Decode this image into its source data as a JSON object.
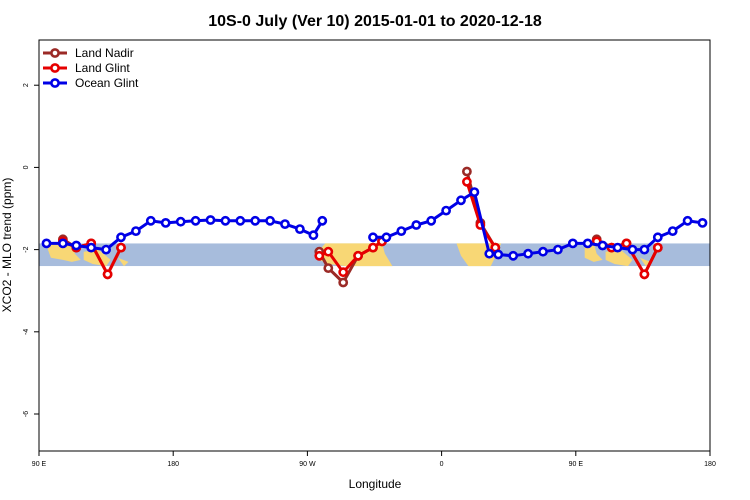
{
  "chart_data": {
    "type": "line",
    "title": "10S-0 July (Ver 10)   2015-01-01 to 2020-12-18",
    "xlabel": "Longitude",
    "ylabel": "XCO2 - MLO trend (ppm)",
    "xlim": [
      90,
      540
    ],
    "ylim": [
      -6.9,
      3.1
    ],
    "x_ticks": [
      {
        "value": 90,
        "label": "90 E"
      },
      {
        "value": 180,
        "label": "180"
      },
      {
        "value": 270,
        "label": "90 W"
      },
      {
        "value": 360,
        "label": "0"
      },
      {
        "value": 450,
        "label": "90 E"
      },
      {
        "value": 540,
        "label": "180"
      }
    ],
    "y_ticks": [
      {
        "value": 2,
        "label": "2"
      },
      {
        "value": 0,
        "label": "0"
      },
      {
        "value": -2,
        "label": "-2"
      },
      {
        "value": -4,
        "label": "-4"
      },
      {
        "value": -6,
        "label": "-6"
      }
    ],
    "band": {
      "ymin": -2.4,
      "ymax": -1.85,
      "ocean_color": "#a7bcdc",
      "land_color": "#f8d775"
    },
    "land_regions": [
      {
        "polygon": [
          [
            96,
            -1.85
          ],
          [
            112,
            -1.85
          ],
          [
            114,
            -2.1
          ],
          [
            118,
            -2.25
          ],
          [
            112,
            -2.3
          ],
          [
            106,
            -2.25
          ],
          [
            98,
            -2.2
          ],
          [
            96,
            -2.0
          ]
        ]
      },
      {
        "polygon": [
          [
            120,
            -2.05
          ],
          [
            130,
            -2.0
          ],
          [
            138,
            -2.25
          ],
          [
            135,
            -2.4
          ],
          [
            126,
            -2.35
          ],
          [
            120,
            -2.25
          ]
        ]
      },
      {
        "polygon": [
          [
            143,
            -2.2
          ],
          [
            150,
            -2.3
          ],
          [
            147,
            -2.4
          ]
        ]
      },
      {
        "polygon": [
          [
            276,
            -2.1
          ],
          [
            282,
            -1.85
          ],
          [
            320,
            -1.85
          ],
          [
            322,
            -2.1
          ],
          [
            327,
            -2.4
          ],
          [
            296,
            -2.4
          ],
          [
            284,
            -2.35
          ],
          [
            278,
            -2.25
          ]
        ]
      },
      {
        "polygon": [
          [
            370,
            -1.85
          ],
          [
            400,
            -1.85
          ],
          [
            397,
            -2.1
          ],
          [
            393,
            -2.4
          ],
          [
            378,
            -2.4
          ],
          [
            373,
            -2.15
          ]
        ]
      },
      {
        "polygon": [
          [
            456,
            -1.85
          ],
          [
            462,
            -1.85
          ],
          [
            464,
            -2.1
          ],
          [
            468,
            -2.25
          ],
          [
            462,
            -2.3
          ],
          [
            456,
            -2.2
          ]
        ]
      },
      {
        "polygon": [
          [
            470,
            -2.05
          ],
          [
            480,
            -2.0
          ],
          [
            488,
            -2.25
          ],
          [
            485,
            -2.4
          ],
          [
            476,
            -2.35
          ],
          [
            470,
            -2.25
          ]
        ]
      },
      {
        "polygon": [
          [
            493,
            -2.2
          ],
          [
            500,
            -2.3
          ],
          [
            497,
            -2.4
          ]
        ]
      }
    ],
    "legend": {
      "position": "top-left"
    },
    "series": [
      {
        "name": "Land Nadir",
        "color": "#9b2a26",
        "segments": [
          [
            [
              106,
              -1.75
            ],
            [
              115,
              -1.95
            ],
            [
              125,
              -1.85
            ],
            [
              136,
              -2.6
            ],
            [
              145,
              -1.95
            ]
          ],
          [
            [
              278,
              -2.05
            ],
            [
              284,
              -2.45
            ],
            [
              294,
              -2.8
            ],
            [
              304,
              -2.15
            ],
            [
              314,
              -1.95
            ],
            [
              320,
              -1.8
            ]
          ],
          [
            [
              377,
              -0.1
            ],
            [
              386,
              -1.35
            ],
            [
              396,
              -1.95
            ]
          ],
          [
            [
              464,
              -1.75
            ],
            [
              474,
              -1.95
            ],
            [
              484,
              -1.85
            ],
            [
              496,
              -2.6
            ],
            [
              505,
              -1.95
            ]
          ]
        ]
      },
      {
        "name": "Land Glint",
        "color": "#e60000",
        "segments": [
          [
            [
              106,
              -1.8
            ],
            [
              115,
              -1.95
            ],
            [
              125,
              -1.85
            ],
            [
              136,
              -2.6
            ],
            [
              145,
              -1.95
            ]
          ],
          [
            [
              278,
              -2.15
            ],
            [
              284,
              -2.05
            ],
            [
              294,
              -2.55
            ],
            [
              304,
              -2.15
            ],
            [
              314,
              -1.95
            ],
            [
              320,
              -1.8
            ]
          ],
          [
            [
              377,
              -0.35
            ],
            [
              386,
              -1.4
            ],
            [
              396,
              -1.95
            ]
          ],
          [
            [
              464,
              -1.8
            ],
            [
              474,
              -1.95
            ],
            [
              484,
              -1.85
            ],
            [
              496,
              -2.6
            ],
            [
              505,
              -1.95
            ]
          ]
        ]
      },
      {
        "name": "Ocean Glint",
        "color": "#0000e6",
        "segments": [
          [
            [
              95,
              -1.85
            ],
            [
              106,
              -1.85
            ],
            [
              115,
              -1.9
            ],
            [
              125,
              -1.95
            ],
            [
              135,
              -2.0
            ],
            [
              145,
              -1.7
            ],
            [
              155,
              -1.55
            ],
            [
              165,
              -1.3
            ],
            [
              175,
              -1.35
            ],
            [
              185,
              -1.32
            ],
            [
              195,
              -1.3
            ],
            [
              205,
              -1.28
            ],
            [
              215,
              -1.3
            ],
            [
              225,
              -1.3
            ],
            [
              235,
              -1.3
            ],
            [
              245,
              -1.3
            ],
            [
              255,
              -1.38
            ],
            [
              265,
              -1.5
            ],
            [
              274,
              -1.65
            ],
            [
              280,
              -1.3
            ]
          ],
          [
            [
              314,
              -1.7
            ],
            [
              323,
              -1.7
            ],
            [
              333,
              -1.55
            ],
            [
              343,
              -1.4
            ],
            [
              353,
              -1.3
            ],
            [
              363,
              -1.05
            ],
            [
              373,
              -0.8
            ],
            [
              382,
              -0.6
            ],
            [
              392,
              -2.1
            ],
            [
              398,
              -2.12
            ],
            [
              408,
              -2.15
            ],
            [
              418,
              -2.1
            ],
            [
              428,
              -2.05
            ],
            [
              438,
              -2.0
            ],
            [
              448,
              -1.85
            ],
            [
              458,
              -1.85
            ],
            [
              468,
              -1.9
            ],
            [
              478,
              -1.95
            ],
            [
              488,
              -2.0
            ],
            [
              496,
              -2.0
            ],
            [
              505,
              -1.7
            ],
            [
              515,
              -1.55
            ],
            [
              525,
              -1.3
            ],
            [
              535,
              -1.35
            ]
          ]
        ]
      }
    ]
  }
}
